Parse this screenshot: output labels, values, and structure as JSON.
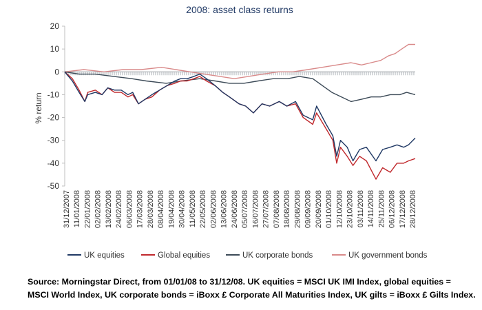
{
  "chart_data": {
    "type": "line",
    "title": "2008: asset class returns",
    "ylabel": "% return",
    "xlabel": "",
    "ylim": [
      -50,
      20
    ],
    "yticks": [
      20,
      10,
      0,
      -10,
      -20,
      -30,
      -40,
      -50
    ],
    "xlim": [
      "2007-12-31",
      "2008-12-31"
    ],
    "grid": false,
    "legend_position": "bottom",
    "xtick_labels": [
      "31/12/2007",
      "11/01/2008",
      "22/01/2008",
      "02/02/2008",
      "13/02/2008",
      "24/02/2008",
      "06/03/2008",
      "17/03/2008",
      "28/03/2008",
      "08/04/2008",
      "19/04/2008",
      "30/04/2008",
      "11/05/2008",
      "22/05/2008",
      "02/06/2008",
      "13/06/2008",
      "24/06/2008",
      "05/07/2008",
      "16/07/2008",
      "27/07/2008",
      "07/08/2008",
      "18/08/2008",
      "29/08/2008",
      "09/09/2008",
      "20/09/2008",
      "01/10/2008",
      "12/10/2008",
      "23/10/2008",
      "03/11/2008",
      "14/11/2008",
      "25/11/2008",
      "06/12/2008",
      "17/12/2008",
      "28/12/2008"
    ],
    "series": [
      {
        "name": "UK equities",
        "color": "#1f3864",
        "points": [
          [
            "2007-12-31",
            0
          ],
          [
            "2008-01-08",
            -4
          ],
          [
            "2008-01-15",
            -9
          ],
          [
            "2008-01-21",
            -13
          ],
          [
            "2008-01-24",
            -10
          ],
          [
            "2008-02-01",
            -9
          ],
          [
            "2008-02-08",
            -10
          ],
          [
            "2008-02-14",
            -7
          ],
          [
            "2008-02-21",
            -8
          ],
          [
            "2008-02-28",
            -8
          ],
          [
            "2008-03-06",
            -10
          ],
          [
            "2008-03-11",
            -9
          ],
          [
            "2008-03-17",
            -14
          ],
          [
            "2008-03-24",
            -12
          ],
          [
            "2008-03-31",
            -10
          ],
          [
            "2008-04-08",
            -8
          ],
          [
            "2008-04-16",
            -6
          ],
          [
            "2008-04-24",
            -4
          ],
          [
            "2008-04-30",
            -3
          ],
          [
            "2008-05-07",
            -3
          ],
          [
            "2008-05-14",
            -2
          ],
          [
            "2008-05-20",
            -1
          ],
          [
            "2008-05-27",
            -3
          ],
          [
            "2008-06-05",
            -6
          ],
          [
            "2008-06-13",
            -9
          ],
          [
            "2008-06-20",
            -11
          ],
          [
            "2008-06-30",
            -14
          ],
          [
            "2008-07-07",
            -15
          ],
          [
            "2008-07-15",
            -18
          ],
          [
            "2008-07-24",
            -14
          ],
          [
            "2008-08-01",
            -15
          ],
          [
            "2008-08-11",
            -13
          ],
          [
            "2008-08-19",
            -15
          ],
          [
            "2008-08-28",
            -13
          ],
          [
            "2008-09-05",
            -19
          ],
          [
            "2008-09-15",
            -21
          ],
          [
            "2008-09-19",
            -15
          ],
          [
            "2008-09-29",
            -23
          ],
          [
            "2008-10-06",
            -28
          ],
          [
            "2008-10-10",
            -37
          ],
          [
            "2008-10-14",
            -30
          ],
          [
            "2008-10-21",
            -33
          ],
          [
            "2008-10-27",
            -39
          ],
          [
            "2008-11-03",
            -34
          ],
          [
            "2008-11-10",
            -33
          ],
          [
            "2008-11-20",
            -39
          ],
          [
            "2008-11-27",
            -34
          ],
          [
            "2008-12-05",
            -33
          ],
          [
            "2008-12-12",
            -32
          ],
          [
            "2008-12-19",
            -33
          ],
          [
            "2008-12-24",
            -32
          ],
          [
            "2008-12-31",
            -29
          ]
        ]
      },
      {
        "name": "Global equities",
        "color": "#c0282c",
        "points": [
          [
            "2007-12-31",
            0
          ],
          [
            "2008-01-08",
            -3
          ],
          [
            "2008-01-15",
            -8
          ],
          [
            "2008-01-21",
            -13
          ],
          [
            "2008-01-24",
            -9
          ],
          [
            "2008-02-01",
            -8
          ],
          [
            "2008-02-08",
            -10
          ],
          [
            "2008-02-14",
            -7
          ],
          [
            "2008-02-21",
            -9
          ],
          [
            "2008-02-28",
            -9
          ],
          [
            "2008-03-06",
            -11
          ],
          [
            "2008-03-11",
            -10
          ],
          [
            "2008-03-17",
            -14
          ],
          [
            "2008-03-24",
            -12
          ],
          [
            "2008-03-31",
            -11
          ],
          [
            "2008-04-08",
            -8
          ],
          [
            "2008-04-16",
            -6
          ],
          [
            "2008-04-24",
            -5
          ],
          [
            "2008-04-30",
            -4
          ],
          [
            "2008-05-07",
            -4
          ],
          [
            "2008-05-14",
            -3
          ],
          [
            "2008-05-20",
            -2
          ],
          [
            "2008-05-27",
            -4
          ],
          [
            "2008-06-05",
            -6
          ],
          [
            "2008-06-13",
            -9
          ],
          [
            "2008-06-20",
            -11
          ],
          [
            "2008-06-30",
            -14
          ],
          [
            "2008-07-07",
            -15
          ],
          [
            "2008-07-15",
            -18
          ],
          [
            "2008-07-24",
            -14
          ],
          [
            "2008-08-01",
            -15
          ],
          [
            "2008-08-11",
            -13
          ],
          [
            "2008-08-19",
            -15
          ],
          [
            "2008-08-28",
            -14
          ],
          [
            "2008-09-05",
            -20
          ],
          [
            "2008-09-15",
            -23
          ],
          [
            "2008-09-19",
            -18
          ],
          [
            "2008-09-29",
            -25
          ],
          [
            "2008-10-06",
            -30
          ],
          [
            "2008-10-10",
            -40
          ],
          [
            "2008-10-14",
            -33
          ],
          [
            "2008-10-21",
            -37
          ],
          [
            "2008-10-27",
            -41
          ],
          [
            "2008-11-03",
            -37
          ],
          [
            "2008-11-10",
            -39
          ],
          [
            "2008-11-20",
            -47
          ],
          [
            "2008-11-27",
            -42
          ],
          [
            "2008-12-05",
            -44
          ],
          [
            "2008-12-12",
            -40
          ],
          [
            "2008-12-19",
            -40
          ],
          [
            "2008-12-24",
            -39
          ],
          [
            "2008-12-31",
            -38
          ]
        ]
      },
      {
        "name": "UK corporate bonds",
        "color": "#3c4a57",
        "points": [
          [
            "2007-12-31",
            0
          ],
          [
            "2008-01-15",
            -1
          ],
          [
            "2008-02-01",
            -1
          ],
          [
            "2008-02-20",
            -2
          ],
          [
            "2008-03-10",
            -3
          ],
          [
            "2008-03-25",
            -4
          ],
          [
            "2008-04-15",
            -5
          ],
          [
            "2008-05-01",
            -4
          ],
          [
            "2008-05-20",
            -3
          ],
          [
            "2008-06-05",
            -4
          ],
          [
            "2008-06-20",
            -5
          ],
          [
            "2008-07-05",
            -5
          ],
          [
            "2008-07-20",
            -4
          ],
          [
            "2008-08-05",
            -3
          ],
          [
            "2008-08-20",
            -3
          ],
          [
            "2008-09-01",
            -2
          ],
          [
            "2008-09-15",
            -3
          ],
          [
            "2008-09-25",
            -6
          ],
          [
            "2008-10-05",
            -9
          ],
          [
            "2008-10-15",
            -11
          ],
          [
            "2008-10-25",
            -13
          ],
          [
            "2008-11-05",
            -12
          ],
          [
            "2008-11-15",
            -11
          ],
          [
            "2008-11-25",
            -11
          ],
          [
            "2008-12-05",
            -10
          ],
          [
            "2008-12-15",
            -10
          ],
          [
            "2008-12-22",
            -9
          ],
          [
            "2008-12-31",
            -10
          ]
        ]
      },
      {
        "name": "UK government bonds",
        "color": "#d98a8a",
        "points": [
          [
            "2007-12-31",
            0
          ],
          [
            "2008-01-20",
            1
          ],
          [
            "2008-02-10",
            0
          ],
          [
            "2008-03-01",
            1
          ],
          [
            "2008-03-20",
            1
          ],
          [
            "2008-04-10",
            2
          ],
          [
            "2008-04-25",
            1
          ],
          [
            "2008-05-10",
            0
          ],
          [
            "2008-05-25",
            -1
          ],
          [
            "2008-06-10",
            -2
          ],
          [
            "2008-06-25",
            -3
          ],
          [
            "2008-07-10",
            -2
          ],
          [
            "2008-07-25",
            -1
          ],
          [
            "2008-08-10",
            0
          ],
          [
            "2008-08-25",
            0
          ],
          [
            "2008-09-10",
            1
          ],
          [
            "2008-09-25",
            2
          ],
          [
            "2008-10-10",
            3
          ],
          [
            "2008-10-25",
            4
          ],
          [
            "2008-11-05",
            3
          ],
          [
            "2008-11-15",
            4
          ],
          [
            "2008-11-25",
            5
          ],
          [
            "2008-12-03",
            7
          ],
          [
            "2008-12-10",
            8
          ],
          [
            "2008-12-17",
            10
          ],
          [
            "2008-12-24",
            12
          ],
          [
            "2008-12-31",
            12
          ]
        ]
      }
    ]
  },
  "caption": {
    "line1": "Source: Morningstar Direct, from 01/01/08 to 31/12/08. UK equities = MSCI UK IMI Index, global equities =",
    "line2": "MSCI World Index, UK corporate bonds = iBoxx £ Corporate All Maturities Index, UK gilts = iBoxx £ Gilts Index."
  }
}
